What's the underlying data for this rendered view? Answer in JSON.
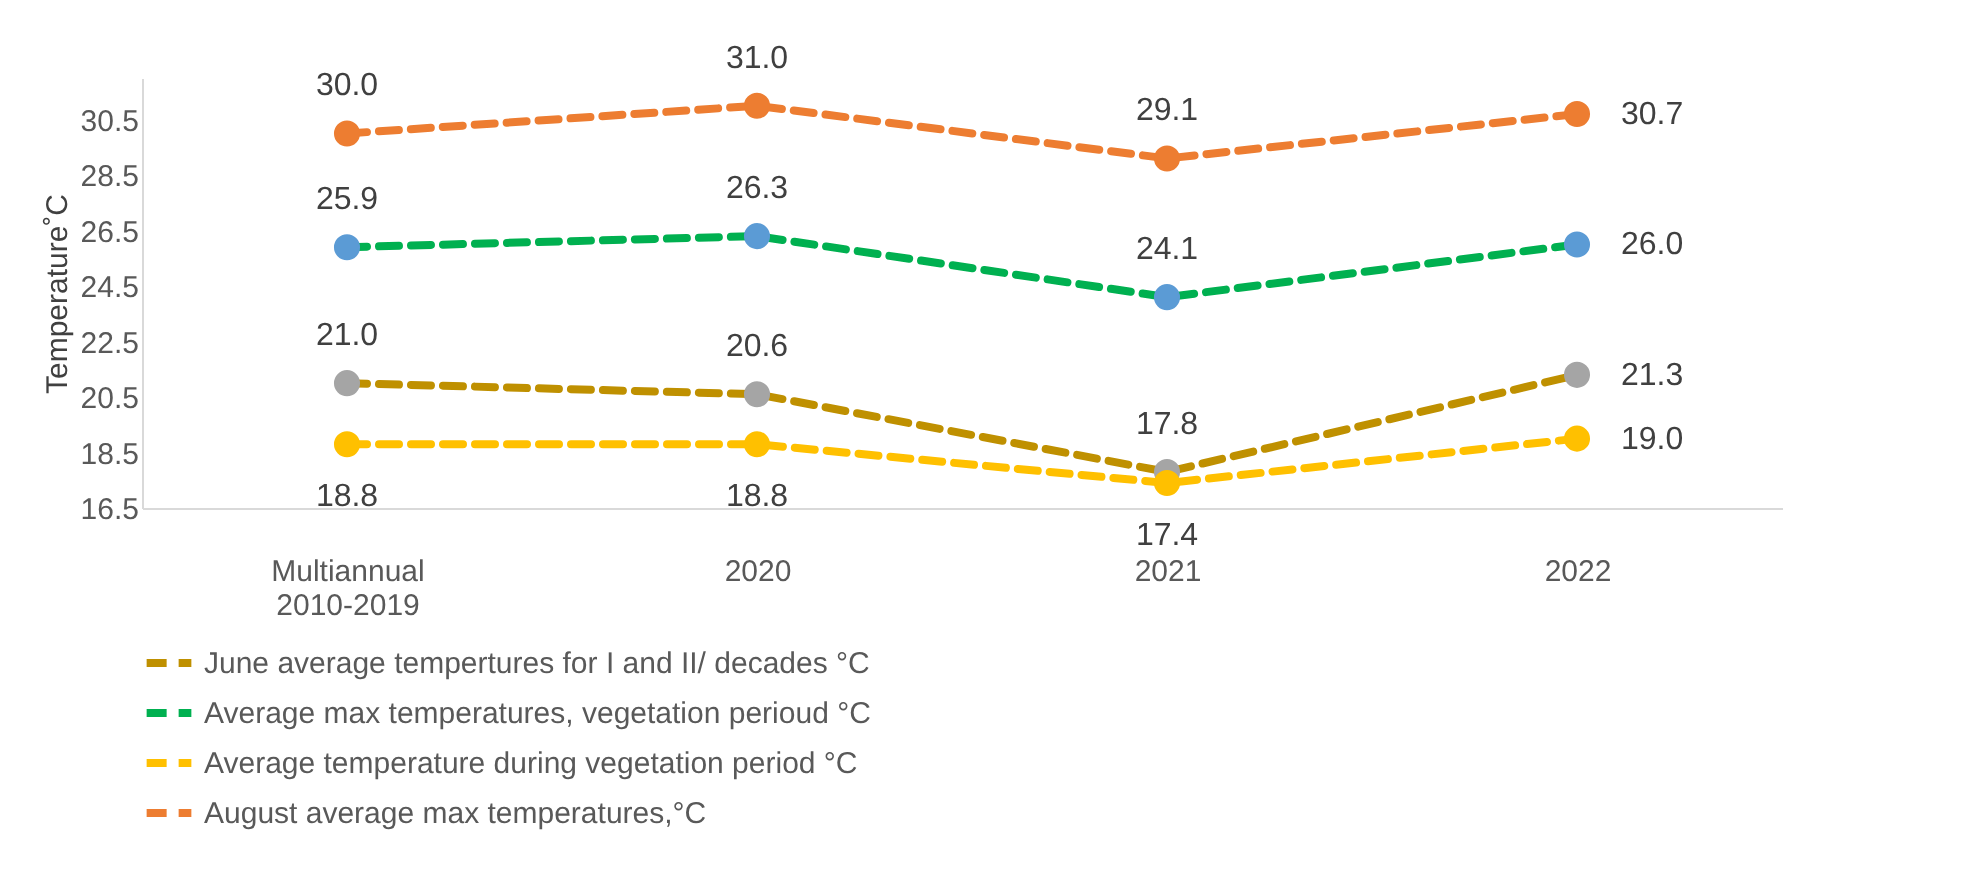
{
  "chart_data": {
    "type": "line",
    "ylabel": "Temperature˚C",
    "categories": [
      "Multiannual 2010-2019",
      "2020",
      "2021",
      "2022"
    ],
    "series": [
      {
        "name": "June average tempertures for  I and II/ decades °C",
        "color": "#bf9000",
        "colors": [
          "#a5a5a5",
          "#a5a5a5",
          "#a5a5a5",
          "#a5a5a5"
        ],
        "values": [
          21.0,
          20.6,
          17.8,
          21.3
        ],
        "value_labels": [
          "21.0",
          "20.6",
          "17.8",
          "21.3"
        ]
      },
      {
        "name": "Average max temperatures, vegetation perioud °C",
        "color": "#00b050",
        "colors": [
          "#5b9bd5",
          "#5b9bd5",
          "#5b9bd5",
          "#5b9bd5"
        ],
        "values": [
          25.9,
          26.3,
          24.1,
          26.0
        ],
        "value_labels": [
          "25.9",
          "26.3",
          "24.1",
          "26.0"
        ]
      },
      {
        "name": "Average temperature during vegetation period °C",
        "color": "#ffc000",
        "colors": [
          "#ffc000",
          "#ffc000",
          "#ffc000",
          "#ffc000"
        ],
        "values": [
          18.8,
          18.8,
          17.4,
          19.0
        ],
        "value_labels": [
          "18.8",
          "18.8",
          "17.4",
          "19.0"
        ]
      },
      {
        "name": "August average max temperatures,°C",
        "color": "#ed7d31",
        "colors": [
          "#ed7d31",
          "#ed7d31",
          "#ed7d31",
          "#ed7d31"
        ],
        "values": [
          30.0,
          31.0,
          29.1,
          30.7
        ],
        "value_labels": [
          "30.0",
          "31.0",
          "29.1",
          "30.7"
        ]
      }
    ],
    "ylim": [
      16.5,
      32
    ],
    "yticks": [
      16.5,
      18.5,
      20.5,
      22.5,
      24.5,
      26.5,
      28.5,
      30.5
    ],
    "grid": false,
    "legend": "bottom",
    "marker": "circle",
    "line_style": "dashed"
  }
}
